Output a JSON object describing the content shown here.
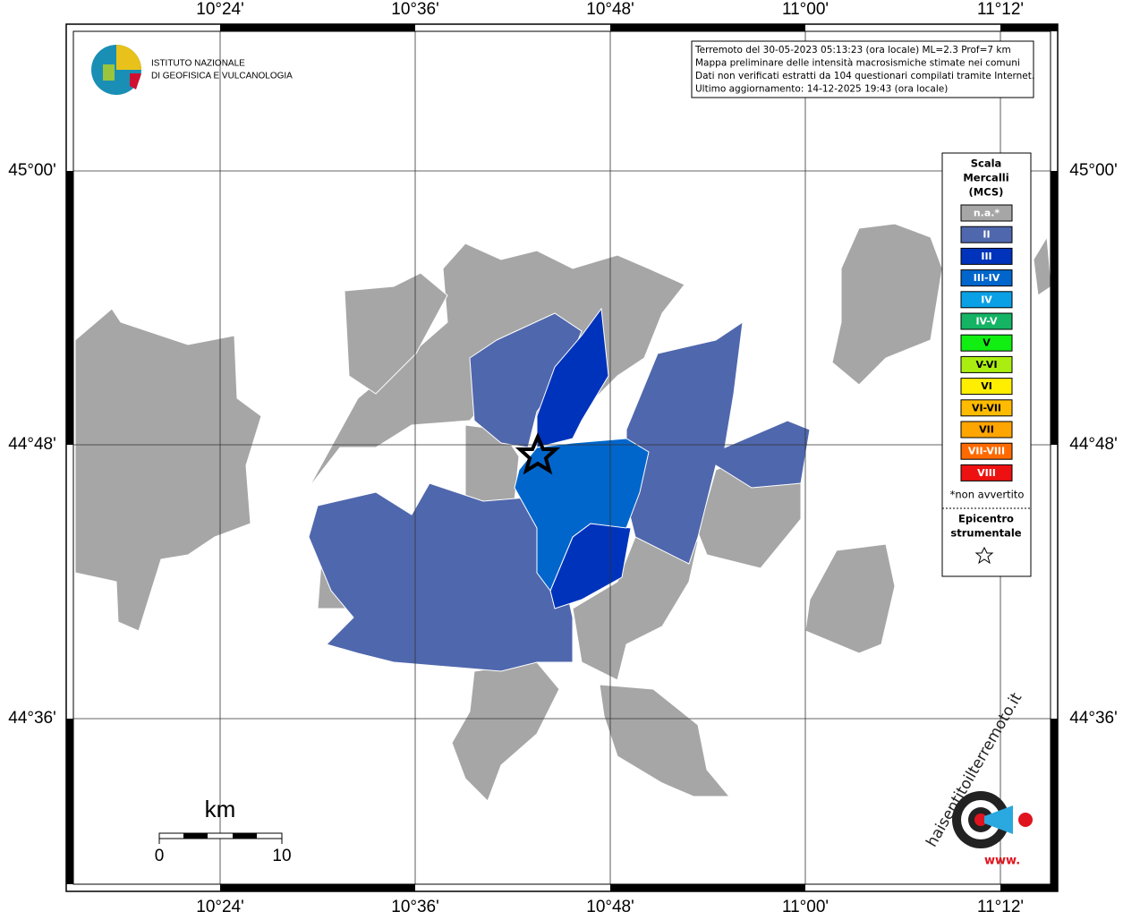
{
  "header": {
    "logo_lines": [
      "ISTITUTO NAZIONALE",
      "DI GEOFISICA E VULCANOLOGIA"
    ]
  },
  "info": {
    "lines": [
      "Terremoto del 30-05-2023 05:13:23 (ora locale) ML=2.3 Prof=7 km",
      "Mappa preliminare delle intensità macrosismiche stimate nei comuni",
      "Dati non verificati estratti da 104 questionari compilati tramite Internet.",
      "Ultimo aggiornamento: 14-12-2025 19:43 (ora locale)"
    ]
  },
  "axes": {
    "lon_labels": [
      "10°24'",
      "10°36'",
      "10°48'",
      "11°00'",
      "11°12'"
    ],
    "lat_labels": [
      "45°00'",
      "44°48'",
      "44°36'"
    ]
  },
  "legend": {
    "title_lines": [
      "Scala",
      "Mercalli",
      "(MCS)"
    ],
    "items": [
      {
        "label": "n.a.*",
        "color": "#a6a6a6"
      },
      {
        "label": "II",
        "color": "#4f67ad"
      },
      {
        "label": "III",
        "color": "#0033bb"
      },
      {
        "label": "III-IV",
        "color": "#0066cc"
      },
      {
        "label": "IV",
        "color": "#0aa0e6"
      },
      {
        "label": "IV-V",
        "color": "#14b464"
      },
      {
        "label": "V",
        "color": "#11ee11"
      },
      {
        "label": "V-VI",
        "color": "#aaee11"
      },
      {
        "label": "VI",
        "color": "#ffee00"
      },
      {
        "label": "VI-VII",
        "color": "#ffbb00"
      },
      {
        "label": "VII",
        "color": "#ffa500"
      },
      {
        "label": "VII-VIII",
        "color": "#ff6a00"
      },
      {
        "label": "VIII",
        "color": "#ee1111"
      }
    ],
    "note": "*non avvertito",
    "epicenter_lines": [
      "Epicentro",
      "strumentale"
    ]
  },
  "scale": {
    "unit": "km",
    "start": "0",
    "end": "10"
  },
  "footer_logo": {
    "text": "haisentitoilterremoto.it",
    "prefix": "www."
  }
}
